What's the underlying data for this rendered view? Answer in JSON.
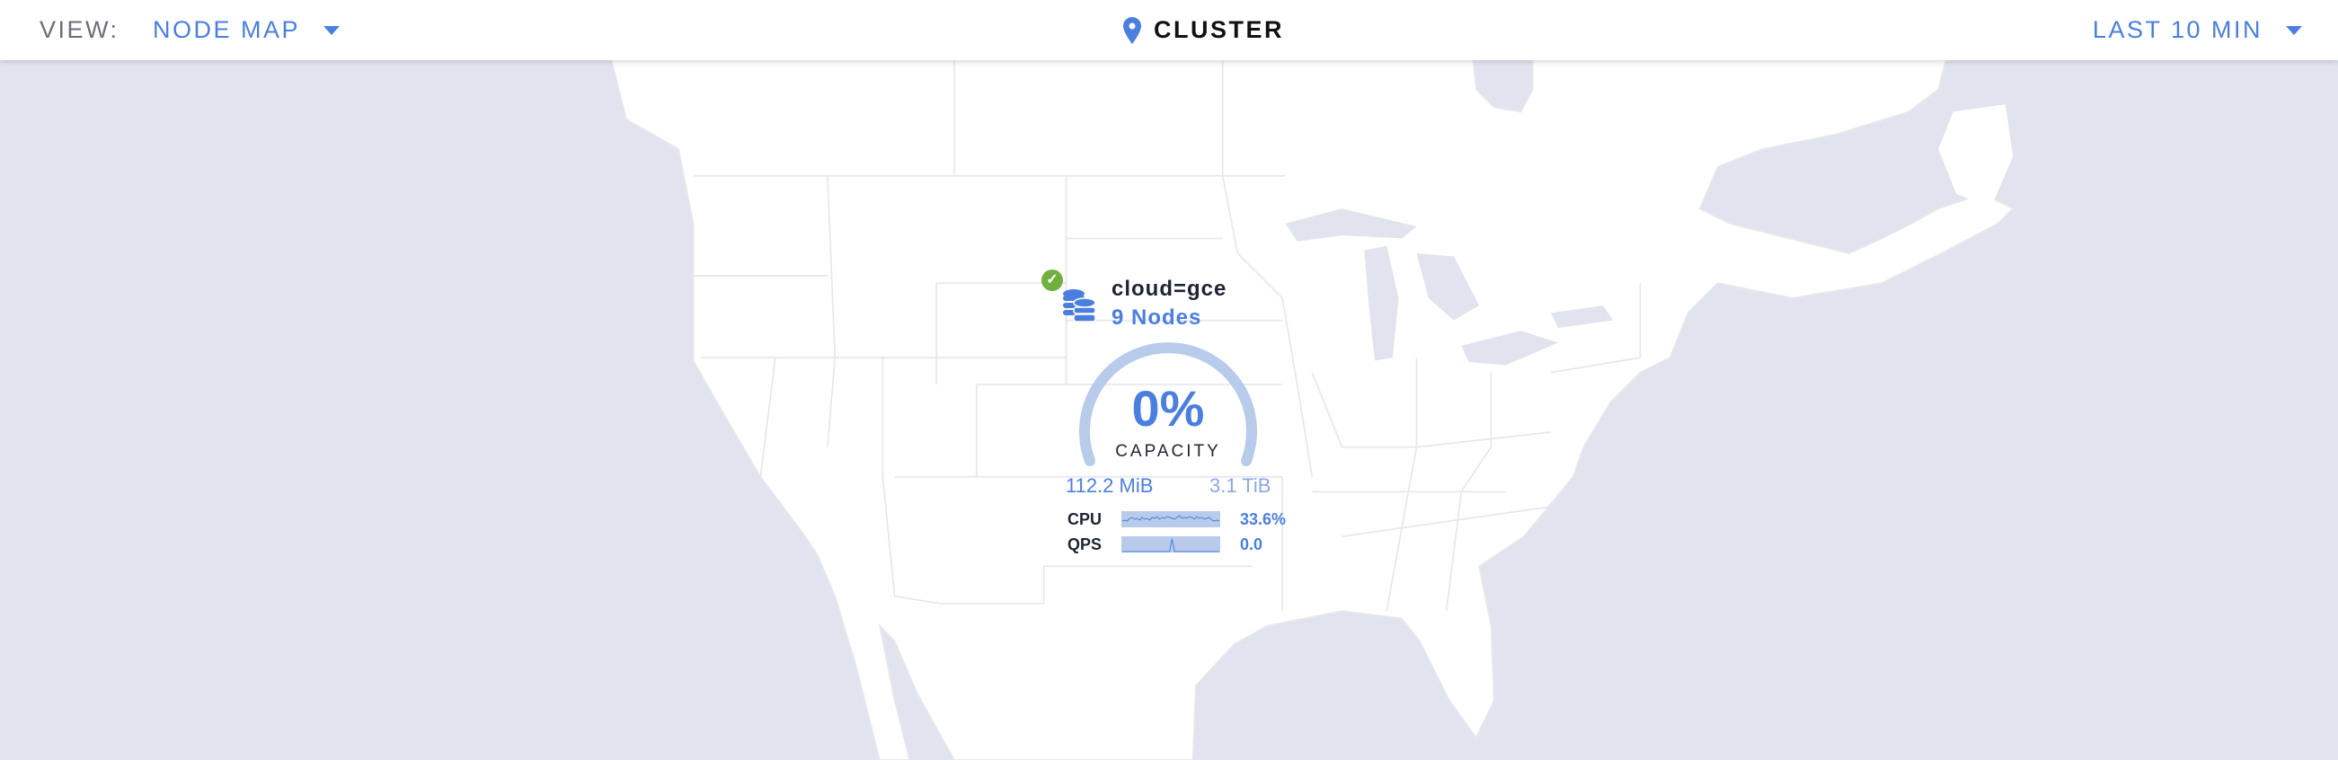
{
  "header": {
    "view_label": "VIEW:",
    "view_value": "NODE MAP",
    "location_icon": "map-pin-icon",
    "title": "CLUSTER",
    "time_range": "LAST 10 MIN"
  },
  "colors": {
    "accent": "#4a7fe0",
    "healthy": "#6fb13c",
    "water": "#e1e4ee",
    "land": "#ffffff",
    "gauge_track": "#b8cbea"
  },
  "node": {
    "status_icon": "check-circle-icon",
    "icon": "database-icon",
    "locality": "cloud=gce",
    "nodes": "9 Nodes",
    "capacity_percent": "0%",
    "capacity_label": "CAPACITY",
    "used": "112.2 MiB",
    "total": "3.1 TiB",
    "metrics": [
      {
        "label": "CPU",
        "value": "33.6%",
        "series": [
          6,
          7,
          6,
          9,
          10,
          8,
          9,
          7,
          10,
          8,
          9,
          7,
          10,
          9,
          11,
          8,
          10,
          9,
          11,
          10,
          9,
          8,
          10,
          12,
          9,
          10,
          9,
          11,
          10,
          8,
          11,
          9,
          10,
          8,
          9,
          10,
          7,
          6,
          7,
          6
        ]
      },
      {
        "label": "QPS",
        "value": "0.0",
        "series": [
          0,
          0,
          0,
          0,
          0,
          0,
          0,
          0,
          0,
          0,
          0,
          0,
          0,
          0,
          0,
          0,
          0,
          0,
          0,
          0,
          14,
          0,
          0,
          0,
          0,
          0,
          0,
          0,
          0,
          0,
          0,
          0,
          0,
          0,
          0,
          0,
          0,
          0,
          0,
          0
        ]
      }
    ]
  }
}
